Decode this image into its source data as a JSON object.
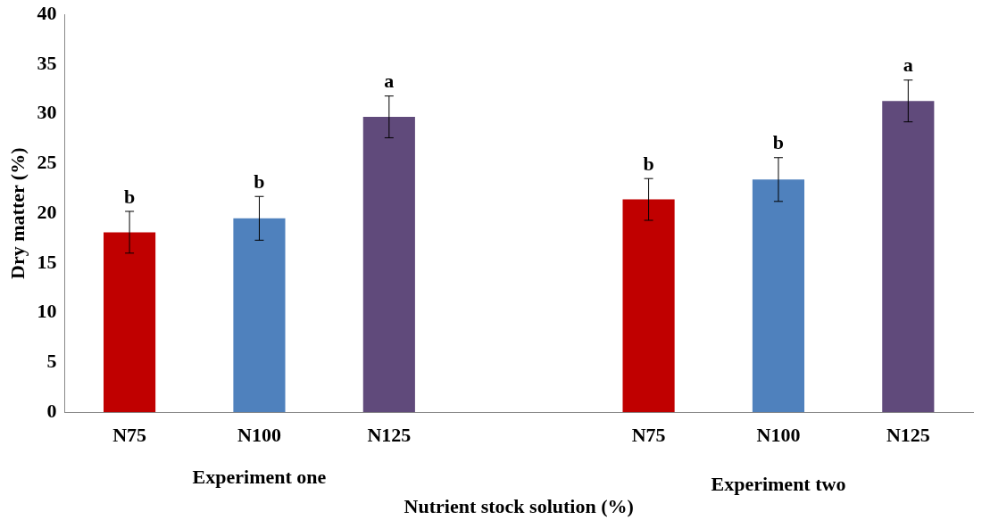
{
  "chart_data": {
    "type": "bar",
    "ylabel": "Dry matter (%)",
    "xlabel": "Nutrient stock solution (%)",
    "categories": [
      "N75",
      "N100",
      "N125",
      null,
      "N75",
      "N100",
      "N125"
    ],
    "values": [
      18.1,
      19.5,
      29.7,
      null,
      21.4,
      23.4,
      31.3
    ],
    "colors": [
      "#c00000",
      "#4f81bd",
      "#604a7b",
      null,
      "#c00000",
      "#4f81bd",
      "#604a7b"
    ],
    "errors": [
      2.1,
      2.2,
      2.1,
      null,
      2.1,
      2.2,
      2.1
    ],
    "value_labels": [
      "b",
      "b",
      "a",
      null,
      "b",
      "b",
      "a"
    ],
    "annotations": [
      "Experiment one",
      "Experiment two"
    ],
    "ylim": [
      0,
      40
    ],
    "yticks": [
      0,
      5,
      10,
      15,
      20,
      25,
      30,
      35,
      40
    ],
    "grid": false,
    "legend": false
  }
}
